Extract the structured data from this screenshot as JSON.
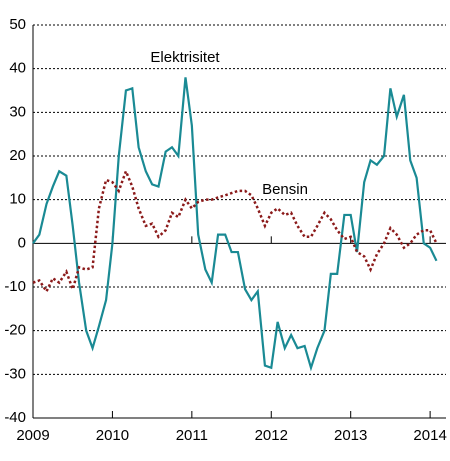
{
  "chart_data": {
    "type": "line",
    "x": [
      2009,
      2009.08,
      2009.17,
      2009.25,
      2009.33,
      2009.42,
      2009.5,
      2009.58,
      2009.67,
      2009.75,
      2009.83,
      2009.92,
      2010,
      2010.08,
      2010.17,
      2010.25,
      2010.33,
      2010.42,
      2010.5,
      2010.58,
      2010.67,
      2010.75,
      2010.83,
      2010.92,
      2011,
      2011.08,
      2011.17,
      2011.25,
      2011.33,
      2011.42,
      2011.5,
      2011.58,
      2011.67,
      2011.75,
      2011.83,
      2011.92,
      2012,
      2012.08,
      2012.17,
      2012.25,
      2012.33,
      2012.42,
      2012.5,
      2012.58,
      2012.67,
      2012.75,
      2012.83,
      2012.92,
      2013,
      2013.08,
      2013.17,
      2013.25,
      2013.33,
      2013.42,
      2013.5,
      2013.58,
      2013.67,
      2013.75,
      2013.83,
      2013.92,
      2014,
      2014.08
    ],
    "series": [
      {
        "name": "Elektrisitet",
        "color": "#1a8a94",
        "dash": false,
        "values": [
          0,
          2,
          9,
          13,
          16.5,
          15.5,
          4,
          -9,
          -20,
          -24,
          -19,
          -13,
          0,
          20,
          35,
          35.5,
          22,
          16.5,
          13.5,
          13,
          21,
          22,
          20,
          38,
          27,
          2,
          -6,
          -9,
          2,
          2,
          -2,
          -2,
          -10.5,
          -13,
          -11,
          -28,
          -28.5,
          -18,
          -24,
          -21,
          -24,
          -23.5,
          -28.5,
          -24,
          -20,
          -7,
          -7,
          6.5,
          6.5,
          -2,
          14,
          19,
          18,
          20,
          35.5,
          29,
          34,
          19,
          15,
          0,
          -1,
          -4
        ]
      },
      {
        "name": "Bensin",
        "color": "#8b1a1a",
        "dash": true,
        "values": [
          -9,
          -8.5,
          -11,
          -8,
          -9,
          -6.5,
          -10.5,
          -5.5,
          -6,
          -5.5,
          8,
          14.5,
          14,
          12,
          16.5,
          13,
          8,
          4,
          4.5,
          1.5,
          3,
          7,
          6,
          10,
          8,
          9.5,
          10,
          10,
          10.5,
          11,
          11.5,
          12,
          12,
          11,
          8,
          4,
          7,
          8,
          6.5,
          7,
          4,
          1.5,
          1.5,
          4,
          7,
          5.5,
          3,
          1,
          1.5,
          -2,
          -3,
          -6,
          -2.5,
          0,
          3.5,
          2,
          -1,
          0,
          2,
          3,
          3,
          0
        ]
      }
    ],
    "xlim": [
      2009,
      2014.2
    ],
    "xticks": [
      2009,
      2010,
      2011,
      2012,
      2013,
      2014
    ],
    "ylim": [
      -40,
      50
    ],
    "yticks": [
      -40,
      -30,
      -20,
      -10,
      0,
      10,
      20,
      30,
      40,
      50
    ],
    "grid": true
  }
}
